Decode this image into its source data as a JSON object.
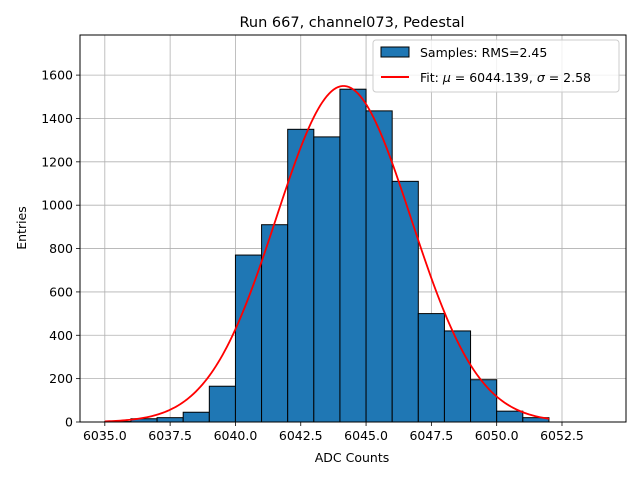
{
  "chart_data": {
    "type": "bar",
    "title": "Run 667, channel073, Pedestal",
    "xlabel": "ADC Counts",
    "ylabel": "Entries",
    "xlim": [
      6034.05,
      6054.95
    ],
    "ylim": [
      0,
      1785
    ],
    "grid": true,
    "legend_position": "top-right",
    "x_ticks": [
      6035.0,
      6037.5,
      6040.0,
      6042.5,
      6045.0,
      6047.5,
      6050.0,
      6052.5
    ],
    "x_tick_labels": [
      "6035.0",
      "6037.5",
      "6040.0",
      "6042.5",
      "6045.0",
      "6047.5",
      "6050.0",
      "6052.5"
    ],
    "y_ticks": [
      0,
      200,
      400,
      600,
      800,
      1000,
      1200,
      1400,
      1600
    ],
    "y_tick_labels": [
      "0",
      "200",
      "400",
      "600",
      "800",
      "1000",
      "1200",
      "1400",
      "1600"
    ],
    "series": [
      {
        "name": "Samples: RMS=2.45",
        "kind": "histogram",
        "color": "#1f77b4",
        "edgecolor": "#000000",
        "bins": [
          {
            "x0": 6035,
            "x1": 6036,
            "value": 2
          },
          {
            "x0": 6036,
            "x1": 6037,
            "value": 15
          },
          {
            "x0": 6037,
            "x1": 6038,
            "value": 20
          },
          {
            "x0": 6038,
            "x1": 6039,
            "value": 45
          },
          {
            "x0": 6039,
            "x1": 6040,
            "value": 165
          },
          {
            "x0": 6040,
            "x1": 6041,
            "value": 770
          },
          {
            "x0": 6041,
            "x1": 6042,
            "value": 910
          },
          {
            "x0": 6042,
            "x1": 6043,
            "value": 1350
          },
          {
            "x0": 6043,
            "x1": 6044,
            "value": 1315
          },
          {
            "x0": 6044,
            "x1": 6045,
            "value": 1535
          },
          {
            "x0": 6045,
            "x1": 6046,
            "value": 1435
          },
          {
            "x0": 6046,
            "x1": 6047,
            "value": 1110
          },
          {
            "x0": 6047,
            "x1": 6048,
            "value": 500
          },
          {
            "x0": 6048,
            "x1": 6049,
            "value": 420
          },
          {
            "x0": 6049,
            "x1": 6050,
            "value": 195
          },
          {
            "x0": 6050,
            "x1": 6051,
            "value": 50
          },
          {
            "x0": 6051,
            "x1": 6052,
            "value": 20
          }
        ]
      },
      {
        "name_prefix": "Fit: ",
        "name_mu": "μ",
        "name_mu_value": " = 6044.139, ",
        "name_sigma": "σ",
        "name_sigma_value": " = 2.58",
        "kind": "gaussian",
        "color": "#ff0000",
        "mu": 6044.139,
        "sigma": 2.58,
        "peak": 1550,
        "x_range": [
          6035,
          6052
        ]
      }
    ]
  }
}
